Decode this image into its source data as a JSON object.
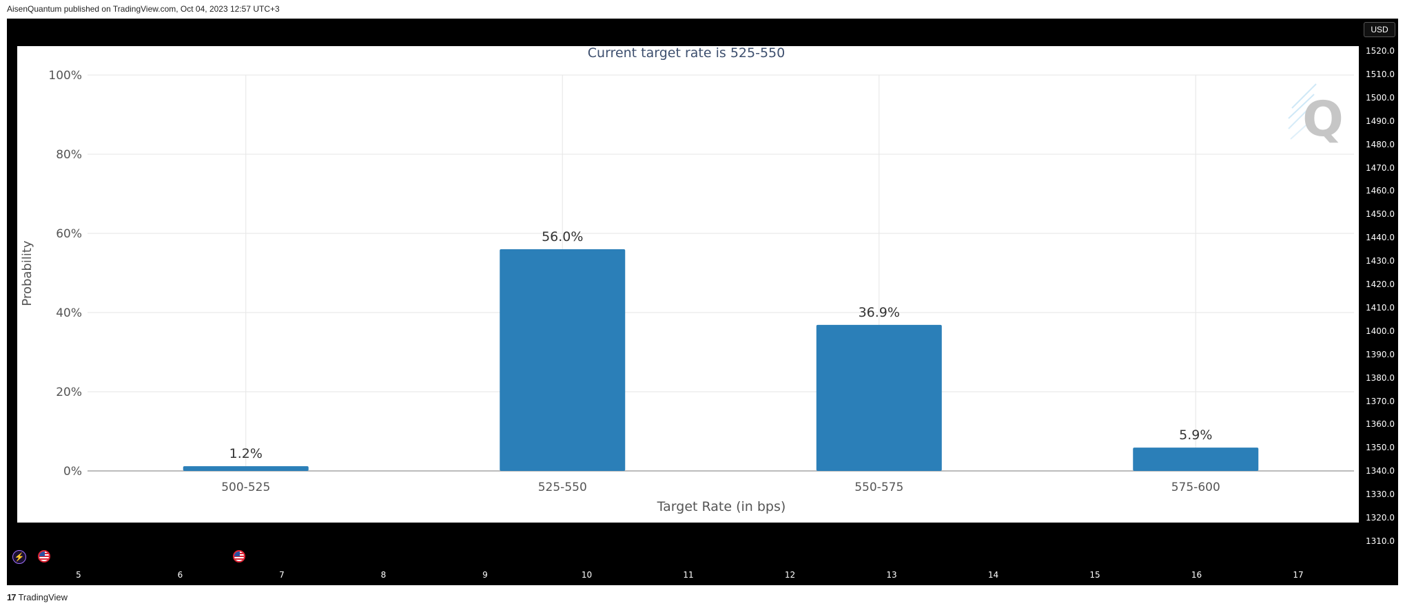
{
  "header": {
    "publisher_line": "AisenQuantum published on TradingView.com, Oct 04, 2023 12:57 UTC+3"
  },
  "price_axis": {
    "currency": "USD",
    "ticks": [
      "1520.0",
      "1510.0",
      "1500.0",
      "1490.0",
      "1480.0",
      "1470.0",
      "1460.0",
      "1450.0",
      "1440.0",
      "1430.0",
      "1420.0",
      "1410.0",
      "1400.0",
      "1390.0",
      "1380.0",
      "1370.0",
      "1360.0",
      "1350.0",
      "1340.0",
      "1330.0",
      "1320.0",
      "1310.0"
    ]
  },
  "time_axis": {
    "ticks": [
      "5",
      "6",
      "7",
      "8",
      "9",
      "10",
      "11",
      "12",
      "13",
      "14",
      "15",
      "16",
      "17"
    ]
  },
  "footer": {
    "brand": "TradingView",
    "logo_text": "17"
  },
  "watermark": {
    "letter": "Q"
  },
  "colors": {
    "bar": "#2b7fb8",
    "frame": "#000000",
    "grid": "#e6e6e6"
  },
  "chart_data": {
    "type": "bar",
    "title": "Current target rate is 525-550",
    "xlabel": "Target Rate (in bps)",
    "ylabel": "Probability",
    "categories": [
      "500-525",
      "525-550",
      "550-575",
      "575-600"
    ],
    "values": [
      1.2,
      56.0,
      36.9,
      5.9
    ],
    "value_labels": [
      "1.2%",
      "56.0%",
      "36.9%",
      "5.9%"
    ],
    "ylim": [
      0,
      100
    ],
    "yticks": [
      "0%",
      "20%",
      "40%",
      "60%",
      "80%",
      "100%"
    ],
    "grid": true
  }
}
